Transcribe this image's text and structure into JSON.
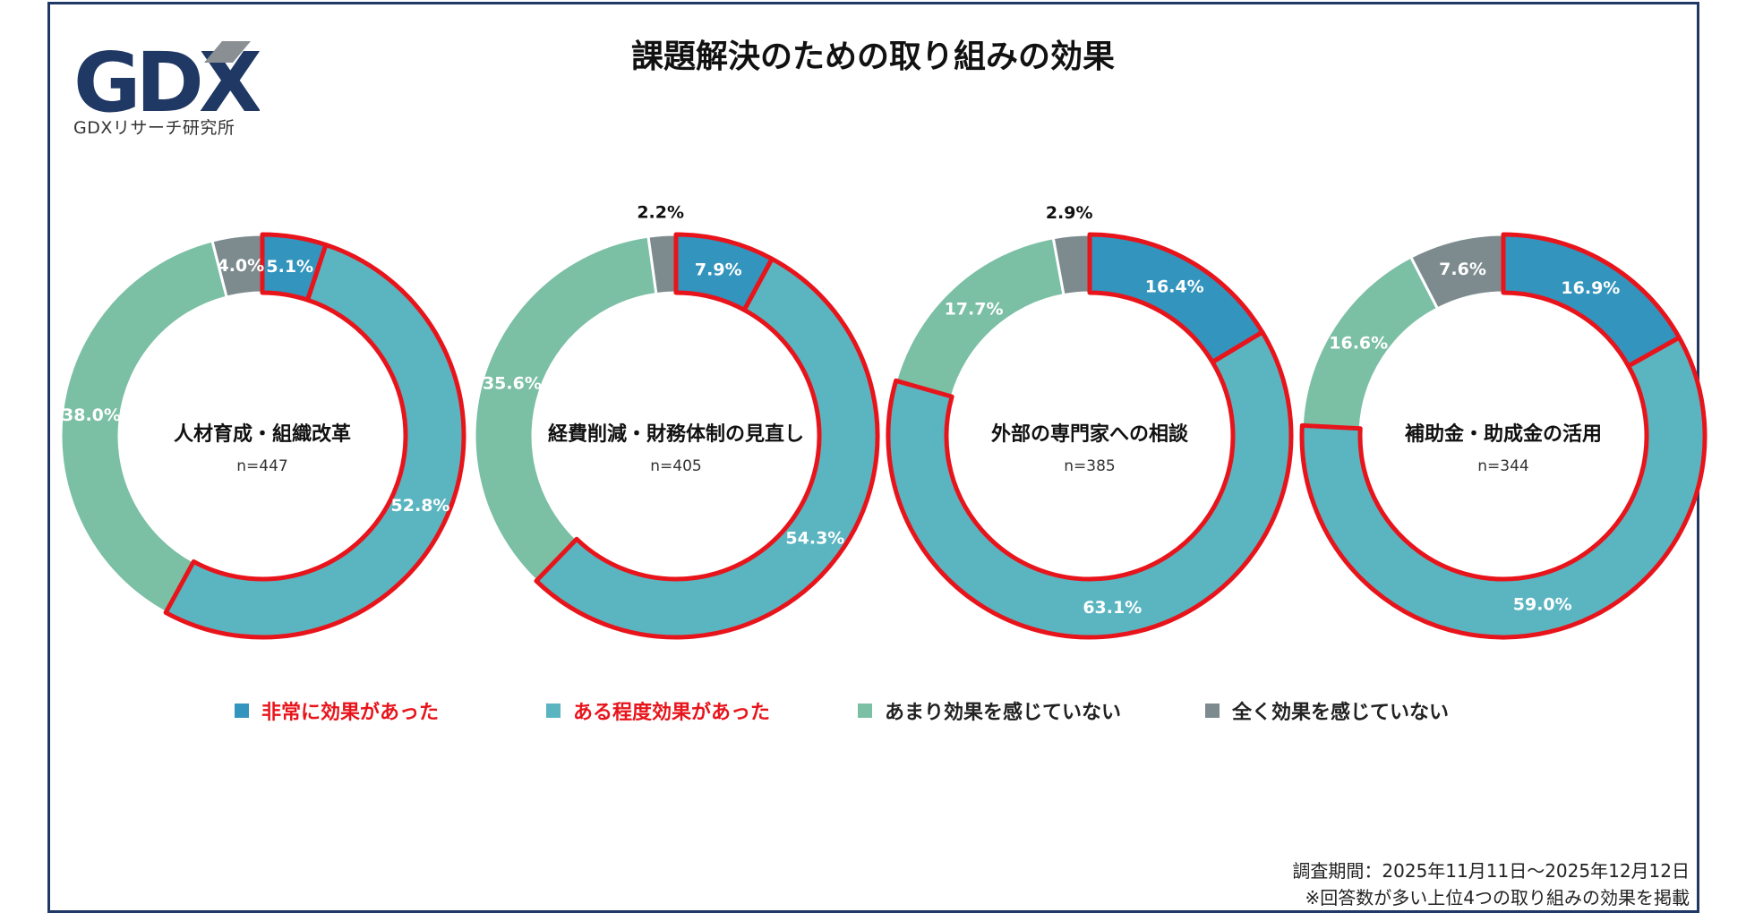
{
  "logo": {
    "mark": "GDX",
    "subtitle": "GDXリサーチ研究所"
  },
  "colors": {
    "very_effective": "#3394bd",
    "somewhat_effective": "#5ab5c0",
    "not_very_effective": "#7bbfa5",
    "not_at_all": "#7d8b8e",
    "highlight": "#e8141b",
    "frame": "#1f3864"
  },
  "chart_data": {
    "type": "donut",
    "title": "課題解決のための取り組みの効果",
    "categories": [
      "非常に効果があった",
      "ある程度効果があった",
      "あまり効果を感じていない",
      "全く効果を感じていない"
    ],
    "highlighted_categories": [
      "非常に効果があった",
      "ある程度効果があった"
    ],
    "charts": [
      {
        "label": "人材育成・組織改革",
        "n": "n=447",
        "values": [
          5.1,
          52.8,
          38.0,
          4.0
        ],
        "value_labels": [
          "5.1%",
          "52.8%",
          "38.0%",
          "4.0%"
        ]
      },
      {
        "label": "経費削減・財務体制の見直し",
        "n": "n=405",
        "values": [
          7.9,
          54.3,
          35.6,
          2.2
        ],
        "value_labels": [
          "7.9%",
          "54.3%",
          "35.6%",
          "2.2%"
        ]
      },
      {
        "label": "外部の専門家への相談",
        "n": "n=385",
        "values": [
          16.4,
          63.1,
          17.7,
          2.9
        ],
        "value_labels": [
          "16.4%",
          "63.1%",
          "17.7%",
          "2.9%"
        ]
      },
      {
        "label": "補助金・助成金の活用",
        "n": "n=344",
        "values": [
          16.9,
          59.0,
          16.6,
          7.6
        ],
        "value_labels": [
          "16.9%",
          "59.0%",
          "16.6%",
          "7.6%"
        ]
      }
    ]
  },
  "legend": [
    {
      "label": "非常に効果があった",
      "color": "#3394bd",
      "text_color": "#e8141b"
    },
    {
      "label": "ある程度効果があった",
      "color": "#5ab5c0",
      "text_color": "#e8141b"
    },
    {
      "label": "あまり効果を感じていない",
      "color": "#7bbfa5",
      "text_color": "#222222"
    },
    {
      "label": "全く効果を感じていない",
      "color": "#7d8b8e",
      "text_color": "#222222"
    }
  ],
  "footnote": {
    "period": "調査期間：2025年11月11日〜2025年12月12日",
    "note": "※回答数が多い上位4つの取り組みの効果を掲載"
  }
}
